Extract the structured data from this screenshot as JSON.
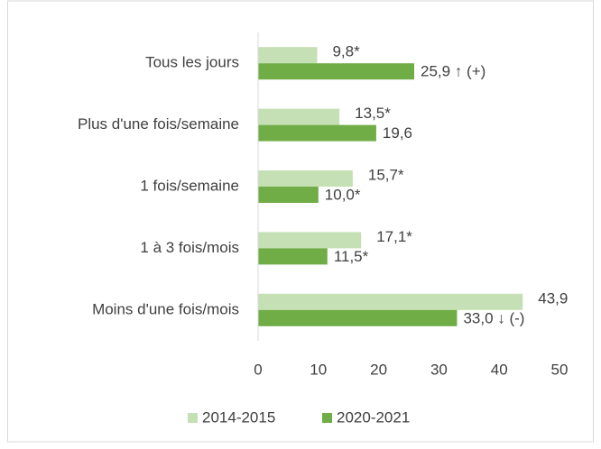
{
  "chart_data": {
    "type": "bar",
    "orientation": "horizontal",
    "categories": [
      "Tous les jours",
      "Plus d'une fois/semaine",
      "1 fois/semaine",
      "1 à 3 fois/mois",
      "Moins d'une fois/mois"
    ],
    "series": [
      {
        "name": "2014-2015",
        "color": "#c5e0b4",
        "values": [
          9.8,
          13.5,
          15.7,
          17.1,
          43.9
        ],
        "value_labels": [
          "9,8*",
          "13,5*",
          "15,7*",
          "17,1*",
          "43,9"
        ]
      },
      {
        "name": "2020-2021",
        "color": "#70ad47",
        "values": [
          25.9,
          19.6,
          10.0,
          11.5,
          33.0
        ],
        "value_labels": [
          "25,9 ↑ (+)",
          "19,6",
          "10,0*",
          "11,5*",
          "33,0 ↓ (-)"
        ]
      }
    ],
    "xlim": [
      0,
      50
    ],
    "xticks": [
      0,
      10,
      20,
      30,
      40,
      50
    ],
    "grid": false,
    "legend": "bottom"
  }
}
